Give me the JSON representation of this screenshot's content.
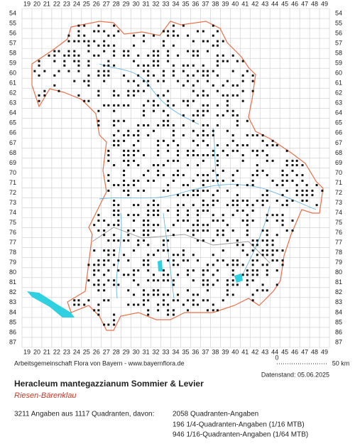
{
  "map": {
    "x_labels": [
      19,
      20,
      21,
      22,
      23,
      24,
      25,
      26,
      27,
      28,
      29,
      30,
      31,
      32,
      33,
      34,
      35,
      36,
      37,
      38,
      39,
      40,
      41,
      42,
      43,
      44,
      45,
      46,
      47,
      48,
      49
    ],
    "y_labels": [
      54,
      55,
      56,
      57,
      58,
      59,
      60,
      61,
      62,
      63,
      64,
      65,
      66,
      67,
      68,
      69,
      70,
      71,
      72,
      73,
      74,
      75,
      76,
      77,
      78,
      79,
      80,
      81,
      82,
      83,
      84,
      85,
      86,
      87
    ]
  },
  "scale": {
    "start": "0",
    "end": "50 km"
  },
  "credit": "Arbeitsgemeinschaft Flora von Bayern - www.bayernflora.de",
  "date": "Datenstand: 05.06.2025",
  "title": "Heracleum mantegazzianum Sommier & Levier",
  "subtitle": "Riesen-Bärenklau",
  "summary": "3211 Angaben aus 1117 Quadranten, davon:",
  "breakdown": [
    "2058 Quadranten-Angaben",
    "196 1/4-Quadranten-Angaben (1/16 MTB)",
    "946 1/16-Quadranten-Angaben (1/64 MTB)"
  ]
}
